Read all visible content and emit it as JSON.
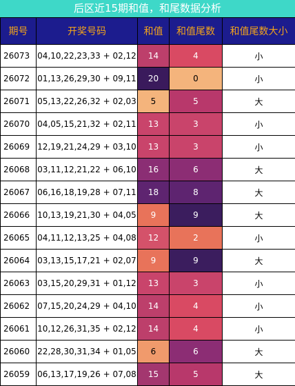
{
  "title": "后区近15期和值，和尾数据分析",
  "table": {
    "headers": [
      "期号",
      "开奖号码",
      "和值",
      "和值尾数",
      "和值尾数大小"
    ],
    "rows": [
      [
        "26073",
        "04,10,22,23,33 + 02,12",
        14,
        4,
        "小"
      ],
      [
        "26072",
        "01,13,26,29,30 + 09,11",
        20,
        0,
        "小"
      ],
      [
        "26071",
        "05,13,22,26,32 + 02,03",
        5,
        5,
        "大"
      ],
      [
        "26070",
        "04,05,15,21,32 + 02,11",
        13,
        3,
        "小"
      ],
      [
        "26069",
        "12,19,21,24,29 + 03,10",
        13,
        3,
        "小"
      ],
      [
        "26068",
        "03,11,12,21,22 + 06,10",
        16,
        6,
        "大"
      ],
      [
        "26067",
        "06,16,18,19,28 + 07,11",
        18,
        8,
        "大"
      ],
      [
        "26066",
        "10,13,19,21,30 + 04,05",
        9,
        9,
        "大"
      ],
      [
        "26065",
        "04,11,12,13,25 + 04,08",
        12,
        2,
        "小"
      ],
      [
        "26064",
        "03,13,15,17,21 + 02,07",
        9,
        9,
        "大"
      ],
      [
        "26063",
        "03,15,20,29,31 + 01,12",
        13,
        3,
        "小"
      ],
      [
        "26062",
        "07,15,20,24,29 + 04,10",
        14,
        4,
        "小"
      ],
      [
        "26061",
        "10,12,26,31,35 + 02,12",
        14,
        4,
        "小"
      ],
      [
        "26060",
        "22,28,30,31,34 + 01,05",
        6,
        6,
        "大"
      ],
      [
        "26059",
        "06,13,17,19,26 + 07,08",
        15,
        5,
        "大"
      ]
    ]
  }
}
